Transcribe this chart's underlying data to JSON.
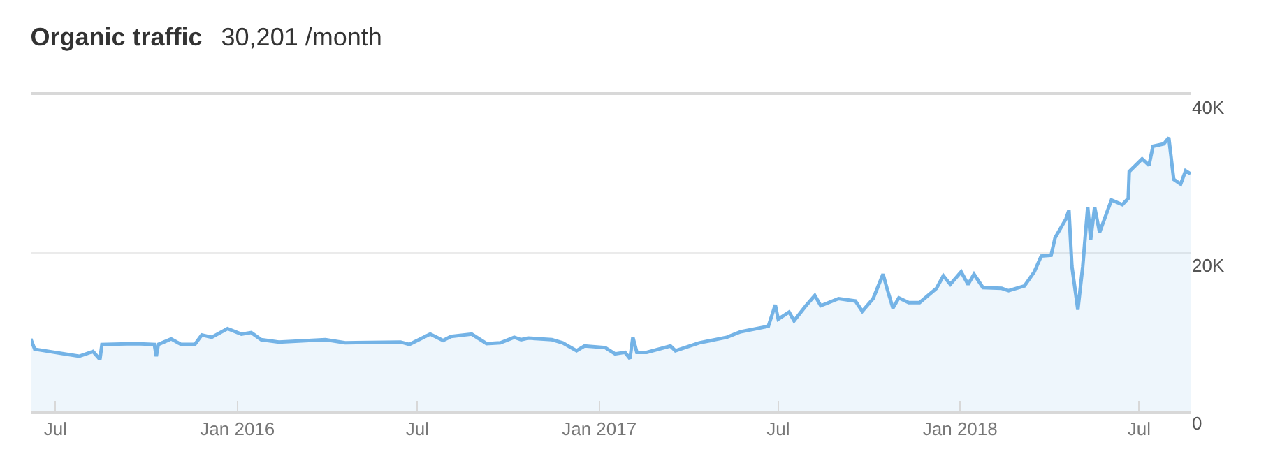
{
  "chart_data": {
    "type": "area",
    "title": "Organic traffic",
    "subtitle": "30,201 /month",
    "x": [
      "2015-06-06",
      "2015-06-10",
      "2015-07-25",
      "2015-08-08",
      "2015-08-15",
      "2015-08-17",
      "2015-09-20",
      "2015-10-09",
      "2015-10-11",
      "2015-10-13",
      "2015-10-26",
      "2015-11-05",
      "2015-11-19",
      "2015-11-26",
      "2015-12-06",
      "2015-12-22",
      "2016-01-05",
      "2016-01-15",
      "2016-01-25",
      "2016-02-12",
      "2016-03-30",
      "2016-04-19",
      "2016-06-14",
      "2016-06-23",
      "2016-07-14",
      "2016-07-27",
      "2016-08-04",
      "2016-08-25",
      "2016-09-09",
      "2016-09-23",
      "2016-10-07",
      "2016-10-14",
      "2016-10-21",
      "2016-11-14",
      "2016-11-25",
      "2016-12-09",
      "2016-12-17",
      "2017-01-07",
      "2017-01-17",
      "2017-01-27",
      "2017-02-01",
      "2017-02-04",
      "2017-02-08",
      "2017-02-18",
      "2017-03-14",
      "2017-03-19",
      "2017-04-12",
      "2017-05-10",
      "2017-05-24",
      "2017-06-21",
      "2017-06-28",
      "2017-07-01",
      "2017-07-12",
      "2017-07-17",
      "2017-07-29",
      "2017-08-07",
      "2017-08-13",
      "2017-08-31",
      "2017-09-17",
      "2017-09-24",
      "2017-10-05",
      "2017-10-15",
      "2017-10-19",
      "2017-10-25",
      "2017-10-31",
      "2017-11-10",
      "2017-11-21",
      "2017-12-08",
      "2017-12-15",
      "2017-12-22",
      "2018-01-02",
      "2018-01-09",
      "2018-01-15",
      "2018-01-24",
      "2018-02-12",
      "2018-02-19",
      "2018-03-07",
      "2018-03-17",
      "2018-03-24",
      "2018-04-03",
      "2018-04-07",
      "2018-04-18",
      "2018-04-21",
      "2018-04-24",
      "2018-04-30",
      "2018-05-05",
      "2018-05-10",
      "2018-05-13",
      "2018-05-17",
      "2018-05-22",
      "2018-06-03",
      "2018-06-14",
      "2018-06-20",
      "2018-06-21",
      "2018-07-04",
      "2018-07-11",
      "2018-07-15",
      "2018-07-26",
      "2018-07-31",
      "2018-08-05",
      "2018-08-12",
      "2018-08-17",
      "2018-08-22"
    ],
    "series": [
      {
        "color": "#74b3e6",
        "values": [
          9100,
          7800,
          6900,
          7500,
          6500,
          8400,
          8500,
          8400,
          6900,
          8400,
          9100,
          8400,
          8400,
          9600,
          9300,
          10400,
          9700,
          9900,
          9000,
          8700,
          9000,
          8600,
          8700,
          8400,
          9700,
          8900,
          9400,
          9700,
          8500,
          8600,
          9300,
          9000,
          9200,
          9000,
          8600,
          7600,
          8200,
          8000,
          7200,
          7400,
          6600,
          9300,
          7400,
          7400,
          8200,
          7600,
          8600,
          9300,
          10000,
          10700,
          13400,
          11600,
          12500,
          11400,
          13300,
          14600,
          13300,
          14200,
          13900,
          12600,
          14200,
          17300,
          15500,
          13000,
          14300,
          13700,
          13700,
          15500,
          17100,
          16000,
          17600,
          16000,
          17300,
          15600,
          15500,
          15200,
          15800,
          17600,
          19600,
          19700,
          21900,
          24300,
          25400,
          18300,
          12800,
          18300,
          25800,
          21700,
          25800,
          22600,
          26700,
          26100,
          26900,
          30300,
          31900,
          31100,
          33500,
          33800,
          34600,
          29300,
          28700,
          30400,
          30000
        ]
      }
    ],
    "xlim": [
      "2015-06-06",
      "2018-08-22"
    ],
    "xticks": [
      {
        "value": "2015-07-01",
        "label": "Jul"
      },
      {
        "value": "2016-01-01",
        "label": "Jan 2016"
      },
      {
        "value": "2016-07-01",
        "label": "Jul"
      },
      {
        "value": "2017-01-01",
        "label": "Jan 2017"
      },
      {
        "value": "2017-07-01",
        "label": "Jul"
      },
      {
        "value": "2018-01-01",
        "label": "Jan 2018"
      },
      {
        "value": "2018-07-01",
        "label": "Jul"
      }
    ],
    "ylim": [
      0,
      40000
    ],
    "yticks": [
      {
        "value": 0,
        "label": "0"
      },
      {
        "value": 20000,
        "label": "20K"
      },
      {
        "value": 40000,
        "label": "40K"
      }
    ],
    "grid": "y",
    "marker": "none",
    "line_style": "solid"
  }
}
